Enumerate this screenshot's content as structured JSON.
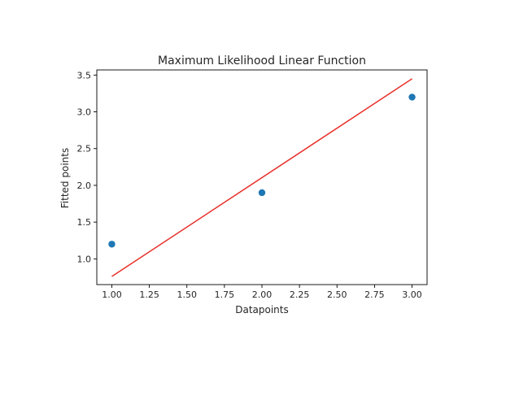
{
  "chart_data": {
    "type": "scatter",
    "title": "Maximum Likelihood Linear Function",
    "xlabel": "Datapoints",
    "ylabel": "Fitted points",
    "xlim": [
      0.9,
      3.1
    ],
    "ylim": [
      0.65,
      3.57
    ],
    "xticks": [
      1.0,
      1.25,
      1.5,
      1.75,
      2.0,
      2.25,
      2.5,
      2.75,
      3.0
    ],
    "xtick_labels": [
      "1.00",
      "1.25",
      "1.50",
      "1.75",
      "2.00",
      "2.25",
      "2.50",
      "2.75",
      "3.00"
    ],
    "yticks": [
      1.0,
      1.5,
      2.0,
      2.5,
      3.0,
      3.5
    ],
    "ytick_labels": [
      "1.0",
      "1.5",
      "2.0",
      "2.5",
      "3.0",
      "3.5"
    ],
    "grid": false,
    "series": [
      {
        "kind": "scatter",
        "color": "#1f77b4",
        "x": [
          1.0,
          2.0,
          3.0
        ],
        "y": [
          1.2,
          1.9,
          3.2
        ]
      },
      {
        "kind": "line",
        "color": "#e8302a",
        "x": [
          1.0,
          3.0
        ],
        "y": [
          0.76,
          3.45
        ]
      }
    ]
  }
}
